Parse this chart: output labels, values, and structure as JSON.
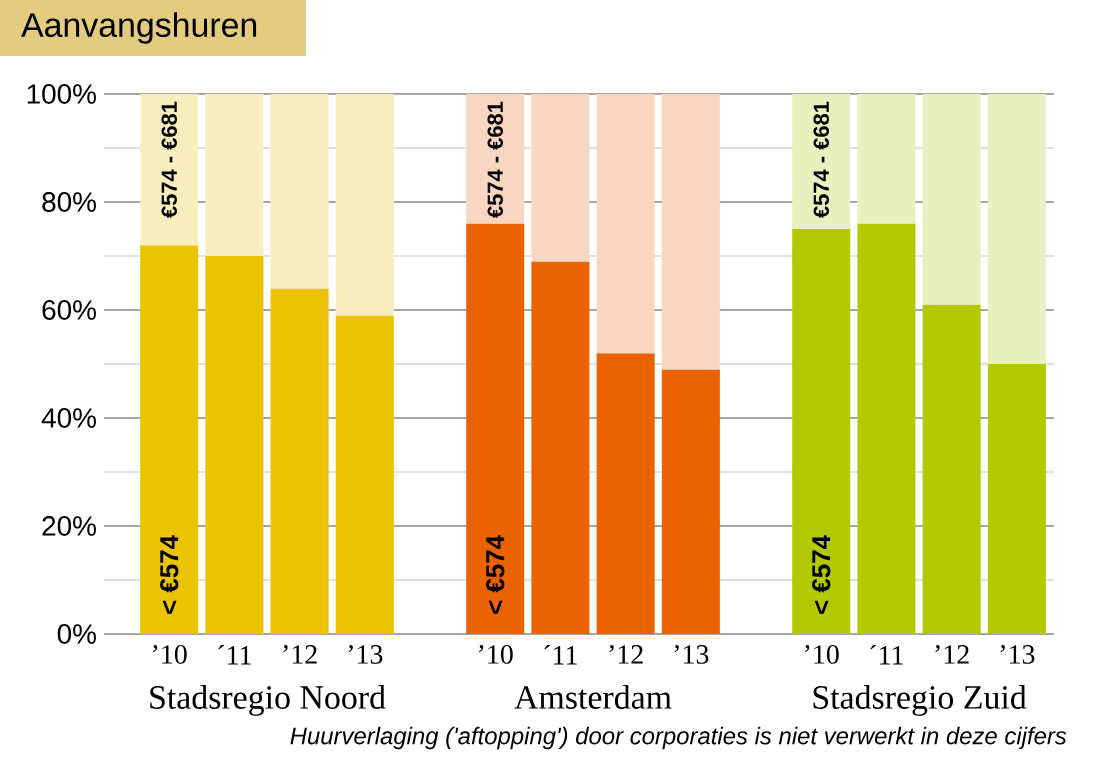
{
  "chart_data": {
    "type": "bar",
    "stacked": true,
    "title": "Aanvangshuren",
    "categories": [
      "’10",
      "´11",
      "’12",
      "’13",
      null,
      "’10",
      "´11",
      "’12",
      "’13",
      null,
      "’10",
      "´11",
      "’12",
      "’13"
    ],
    "series": [
      {
        "name": "< €574",
        "colors": [
          "#ebc300",
          "#ebc300",
          "#ebc300",
          "#ebc300",
          null,
          "#eb6200",
          "#eb6200",
          "#eb6200",
          "#eb6200",
          null,
          "#b2c800",
          "#b2c800",
          "#b2c800",
          "#b2c800"
        ],
        "values": [
          72,
          70,
          64,
          59,
          null,
          76,
          69,
          52,
          49,
          null,
          75,
          76,
          61,
          50
        ]
      },
      {
        "name": "€574 - €681",
        "colors": [
          "#f8eebd",
          "#f8eebd",
          "#f8eebd",
          "#f8eebd",
          null,
          "#f9d6bf",
          "#f9d6bf",
          "#f9d6bf",
          "#f9d6bf",
          null,
          "#e9f0c0",
          "#e9f0c0",
          "#e9f0c0",
          "#e9f0c0"
        ],
        "values": [
          28,
          30,
          36,
          41,
          null,
          24,
          31,
          48,
          51,
          null,
          25,
          24,
          39,
          50
        ]
      }
    ],
    "ylim": [
      0,
      100
    ],
    "yticks": [
      {
        "value": 0,
        "label": "0%"
      },
      {
        "value": 20,
        "label": "20%"
      },
      {
        "value": 40,
        "label": "40%"
      },
      {
        "value": 60,
        "label": "60%"
      },
      {
        "value": 80,
        "label": "80%"
      },
      {
        "value": 100,
        "label": "100%"
      }
    ],
    "grid": "y",
    "annotations": [
      "Stadsregio Noord",
      "Amsterdam",
      "Stadsregio Zuid",
      "Huurverlaging ('aftopping') door corporaties is niet verwerkt in deze cijfers"
    ]
  }
}
